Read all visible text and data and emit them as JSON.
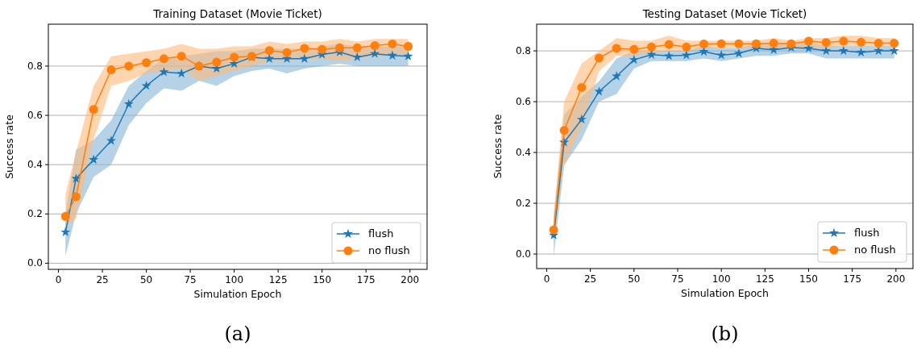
{
  "chart_data": [
    {
      "type": "line",
      "title": "Training Dataset (Movie Ticket)",
      "xlabel": "Simulation Epoch",
      "ylabel": "Success rate",
      "annotations": [
        "(a)"
      ],
      "x": [
        4,
        10,
        20,
        30,
        40,
        50,
        60,
        70,
        80,
        90,
        100,
        110,
        120,
        130,
        140,
        150,
        160,
        170,
        180,
        190,
        199
      ],
      "xlim": [
        -5.75,
        209.75
      ],
      "xticks": [
        0,
        25,
        50,
        75,
        100,
        125,
        150,
        175,
        200
      ],
      "ylim": [
        -0.025,
        0.97
      ],
      "yticks": [
        {
          "value": 0,
          "label": "0.0"
        },
        0.2,
        0.4,
        0.6,
        0.8
      ],
      "grid": "y",
      "legend": "bottom right",
      "series": [
        {
          "name": "flush",
          "color": "#1f77b4",
          "marker": "star",
          "values": [
            0.126,
            0.343,
            0.42,
            0.497,
            0.646,
            0.72,
            0.776,
            0.77,
            0.8,
            0.79,
            0.81,
            0.836,
            0.83,
            0.83,
            0.83,
            0.847,
            0.857,
            0.836,
            0.85,
            0.843,
            0.84
          ],
          "lower": [
            0.03,
            0.2,
            0.35,
            0.4,
            0.56,
            0.65,
            0.71,
            0.7,
            0.74,
            0.72,
            0.76,
            0.78,
            0.79,
            0.77,
            0.79,
            0.8,
            0.81,
            0.8,
            0.8,
            0.8,
            0.8
          ],
          "upper": [
            0.2,
            0.46,
            0.5,
            0.58,
            0.72,
            0.78,
            0.83,
            0.84,
            0.85,
            0.86,
            0.86,
            0.87,
            0.87,
            0.87,
            0.87,
            0.88,
            0.89,
            0.88,
            0.88,
            0.88,
            0.88
          ]
        },
        {
          "name": "no flush",
          "color": "#ff7f0e",
          "marker": "circle",
          "values": [
            0.19,
            0.27,
            0.624,
            0.785,
            0.8,
            0.814,
            0.83,
            0.84,
            0.8,
            0.816,
            0.836,
            0.84,
            0.863,
            0.855,
            0.872,
            0.868,
            0.874,
            0.874,
            0.883,
            0.89,
            0.88
          ],
          "lower": [
            0.15,
            0.18,
            0.5,
            0.72,
            0.74,
            0.77,
            0.78,
            0.79,
            0.74,
            0.76,
            0.78,
            0.8,
            0.82,
            0.82,
            0.83,
            0.83,
            0.82,
            0.83,
            0.84,
            0.85,
            0.85
          ],
          "upper": [
            0.28,
            0.45,
            0.72,
            0.84,
            0.85,
            0.86,
            0.87,
            0.89,
            0.87,
            0.87,
            0.88,
            0.88,
            0.9,
            0.89,
            0.9,
            0.9,
            0.91,
            0.9,
            0.91,
            0.91,
            0.91
          ]
        }
      ]
    },
    {
      "type": "line",
      "title": "Testing Dataset (Movie Ticket)",
      "xlabel": "Simulation Epoch",
      "ylabel": "Success rate",
      "annotations": [
        "(b)"
      ],
      "x": [
        4,
        10,
        20,
        30,
        40,
        50,
        60,
        70,
        80,
        90,
        100,
        110,
        120,
        130,
        140,
        150,
        160,
        170,
        180,
        190,
        199
      ],
      "xlim": [
        -5.75,
        209.75
      ],
      "xticks": [
        0,
        25,
        50,
        75,
        100,
        125,
        150,
        175,
        200
      ],
      "ylim": [
        -0.057,
        0.905
      ],
      "yticks": [
        {
          "value": 0,
          "label": "0.0"
        },
        0.2,
        0.4,
        0.6,
        0.8
      ],
      "grid": "y",
      "legend": "bottom right",
      "series": [
        {
          "name": "flush",
          "color": "#1f77b4",
          "marker": "star",
          "values": [
            0.074,
            0.44,
            0.53,
            0.64,
            0.7,
            0.765,
            0.785,
            0.78,
            0.783,
            0.797,
            0.783,
            0.79,
            0.81,
            0.804,
            0.813,
            0.81,
            0.8,
            0.8,
            0.794,
            0.8,
            0.8
          ],
          "lower": [
            -0.01,
            0.35,
            0.45,
            0.6,
            0.63,
            0.73,
            0.76,
            0.76,
            0.76,
            0.77,
            0.76,
            0.77,
            0.78,
            0.78,
            0.79,
            0.79,
            0.77,
            0.77,
            0.77,
            0.77,
            0.77
          ],
          "upper": [
            0.15,
            0.55,
            0.62,
            0.68,
            0.77,
            0.8,
            0.8,
            0.8,
            0.8,
            0.82,
            0.81,
            0.81,
            0.83,
            0.83,
            0.83,
            0.83,
            0.82,
            0.82,
            0.82,
            0.82,
            0.82
          ]
        },
        {
          "name": "no flush",
          "color": "#ff7f0e",
          "marker": "circle",
          "values": [
            0.095,
            0.487,
            0.656,
            0.772,
            0.81,
            0.806,
            0.815,
            0.825,
            0.815,
            0.827,
            0.828,
            0.828,
            0.828,
            0.83,
            0.828,
            0.838,
            0.833,
            0.838,
            0.834,
            0.83,
            0.83
          ],
          "lower": [
            0.05,
            0.35,
            0.5,
            0.72,
            0.78,
            0.78,
            0.79,
            0.8,
            0.8,
            0.81,
            0.81,
            0.81,
            0.81,
            0.81,
            0.81,
            0.81,
            0.81,
            0.82,
            0.82,
            0.82,
            0.82
          ],
          "upper": [
            0.15,
            0.6,
            0.75,
            0.8,
            0.85,
            0.84,
            0.84,
            0.86,
            0.84,
            0.84,
            0.84,
            0.84,
            0.84,
            0.85,
            0.84,
            0.85,
            0.85,
            0.86,
            0.86,
            0.85,
            0.85
          ]
        }
      ]
    }
  ]
}
